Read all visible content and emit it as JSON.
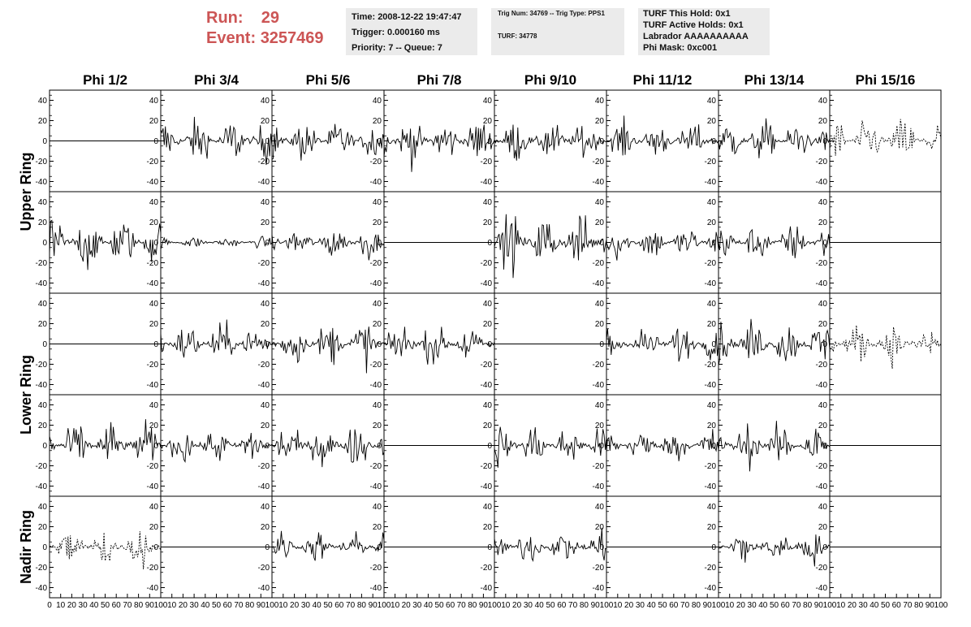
{
  "run": {
    "run_label": "Run:",
    "run_value": "29",
    "event_label": "Event:",
    "event_value": "3257469"
  },
  "info_time": {
    "time": "Time: 2008-12-22 19:47:47",
    "trigger": "Trigger: 0.000160 ms",
    "priority": "Priority: 7 -- Queue: 7"
  },
  "info_trig": {
    "trig": "Trig Num: 34769 -- Trig Type: PPS1",
    "turf": "TURF: 34778"
  },
  "info_turf": {
    "hold": "TURF This Hold: 0x1",
    "active": "TURF Active Holds: 0x1",
    "labrador": "Labrador AAAAAAAAAA",
    "mask": "Phi Mask: 0xc001"
  },
  "colors": {
    "run_text": "#cc5555",
    "info_bg": "#ebebeb",
    "trace": "#000000"
  },
  "chart_data": {
    "type": "line",
    "columns": [
      "Phi 1/2",
      "Phi 3/4",
      "Phi 5/6",
      "Phi 7/8",
      "Phi 9/10",
      "Phi 11/12",
      "Phi 13/14",
      "Phi 15/16"
    ],
    "rows": [
      "Upper Ring",
      "Upper Ring",
      "Lower Ring",
      "Lower Ring",
      "Nadir Ring"
    ],
    "row_labels": [
      {
        "text": "Upper Ring",
        "rows": [
          0,
          1
        ]
      },
      {
        "text": "Lower Ring",
        "rows": [
          2,
          3
        ]
      },
      {
        "text": "Nadir Ring",
        "rows": [
          4,
          4
        ]
      }
    ],
    "xlim": [
      0,
      100
    ],
    "ylim": [
      -50,
      50
    ],
    "y_ticks": [
      -40,
      -20,
      0,
      20,
      40
    ],
    "x_ticks": [
      0,
      10,
      20,
      30,
      40,
      50,
      60,
      70,
      80,
      90,
      100
    ],
    "n_samples": 96,
    "panels": [
      [
        "flat",
        "noise:12",
        "noise:11",
        "noise:12",
        "noise:11",
        "noise:10",
        "noise:11",
        "dashed:12"
      ],
      [
        "noise:14",
        "noise:3",
        "noise:9",
        "flat",
        "noise:15",
        "noise:9",
        "noise:10",
        "flat"
      ],
      [
        "flat",
        "noise:11",
        "noise:12",
        "noise:11",
        "flat",
        "noise:10",
        "noise:12",
        "dashed:10"
      ],
      [
        "noise:12",
        "noise:10",
        "noise:12",
        "flat",
        "noise:11",
        "noise:9",
        "noise:11",
        "flat"
      ],
      [
        "dashed:11",
        "flat",
        "noise:8",
        "flat",
        "noise:9",
        "flat",
        "noise:10",
        "flat"
      ]
    ]
  }
}
